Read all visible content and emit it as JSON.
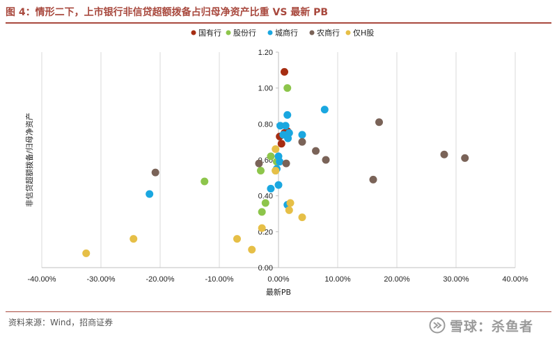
{
  "header": {
    "title": "图 4：情形二下，上市银行非信贷超额拨备占归母净资产比重 VS 最新 PB"
  },
  "footer": {
    "source": "资料来源：Wind，招商证券",
    "watermark": "雪球：杀鱼者"
  },
  "chart_data": {
    "type": "scatter",
    "xlabel": "最新PB",
    "ylabel": "非信贷超额拨备/归母净资产",
    "xlim": [
      -0.4,
      0.4
    ],
    "ylim": [
      0.0,
      1.2
    ],
    "x_ticks": [
      "-40.00%",
      "-30.00%",
      "-20.00%",
      "-10.00%",
      "0.00%",
      "10.00%",
      "20.00%",
      "30.00%",
      "40.00%"
    ],
    "y_ticks": [
      "0.00",
      "0.20",
      "0.40",
      "0.60",
      "0.80",
      "1.00",
      "1.20"
    ],
    "grid": "vertical",
    "legend_position": "top",
    "series": [
      {
        "name": "国有行",
        "color": "#a62d12",
        "points": [
          {
            "x": 0.01,
            "y": 1.09
          },
          {
            "x": 0.002,
            "y": 0.73
          },
          {
            "x": 0.005,
            "y": 0.69
          },
          {
            "x": 0.01,
            "y": 0.75
          },
          {
            "x": 0.015,
            "y": 0.76
          }
        ]
      },
      {
        "name": "股份行",
        "color": "#8dc54b",
        "points": [
          {
            "x": 0.015,
            "y": 1.0
          },
          {
            "x": -0.013,
            "y": 0.62
          },
          {
            "x": -0.003,
            "y": 0.59
          },
          {
            "x": -0.03,
            "y": 0.54
          },
          {
            "x": -0.005,
            "y": 0.54
          },
          {
            "x": -0.125,
            "y": 0.48
          },
          {
            "x": -0.022,
            "y": 0.36
          },
          {
            "x": -0.028,
            "y": 0.31
          }
        ]
      },
      {
        "name": "城商行",
        "color": "#1aa7e0",
        "points": [
          {
            "x": 0.078,
            "y": 0.88
          },
          {
            "x": 0.015,
            "y": 0.85
          },
          {
            "x": 0.003,
            "y": 0.79
          },
          {
            "x": 0.012,
            "y": 0.79
          },
          {
            "x": 0.018,
            "y": 0.75
          },
          {
            "x": 0.04,
            "y": 0.74
          },
          {
            "x": 0.008,
            "y": 0.74
          },
          {
            "x": 0.016,
            "y": 0.72
          },
          {
            "x": 0.0,
            "y": 0.62
          },
          {
            "x": 0.002,
            "y": 0.59
          },
          {
            "x": -0.003,
            "y": 0.55
          },
          {
            "x": 0.0,
            "y": 0.46
          },
          {
            "x": -0.013,
            "y": 0.44
          },
          {
            "x": -0.218,
            "y": 0.41
          },
          {
            "x": 0.015,
            "y": 0.35
          }
        ]
      },
      {
        "name": "农商行",
        "color": "#7a6358",
        "points": [
          {
            "x": 0.17,
            "y": 0.81
          },
          {
            "x": 0.04,
            "y": 0.7
          },
          {
            "x": 0.063,
            "y": 0.65
          },
          {
            "x": 0.08,
            "y": 0.6
          },
          {
            "x": 0.28,
            "y": 0.63
          },
          {
            "x": 0.315,
            "y": 0.61
          },
          {
            "x": -0.033,
            "y": 0.58
          },
          {
            "x": 0.013,
            "y": 0.58
          },
          {
            "x": -0.208,
            "y": 0.53
          },
          {
            "x": 0.16,
            "y": 0.49
          }
        ]
      },
      {
        "name": "仅H股",
        "color": "#e6bf47",
        "points": [
          {
            "x": -0.005,
            "y": 0.66
          },
          {
            "x": -0.005,
            "y": 0.54
          },
          {
            "x": 0.02,
            "y": 0.36
          },
          {
            "x": 0.018,
            "y": 0.32
          },
          {
            "x": 0.04,
            "y": 0.28
          },
          {
            "x": -0.028,
            "y": 0.22
          },
          {
            "x": -0.245,
            "y": 0.16
          },
          {
            "x": -0.07,
            "y": 0.16
          },
          {
            "x": -0.045,
            "y": 0.1
          },
          {
            "x": -0.325,
            "y": 0.08
          }
        ]
      }
    ]
  }
}
